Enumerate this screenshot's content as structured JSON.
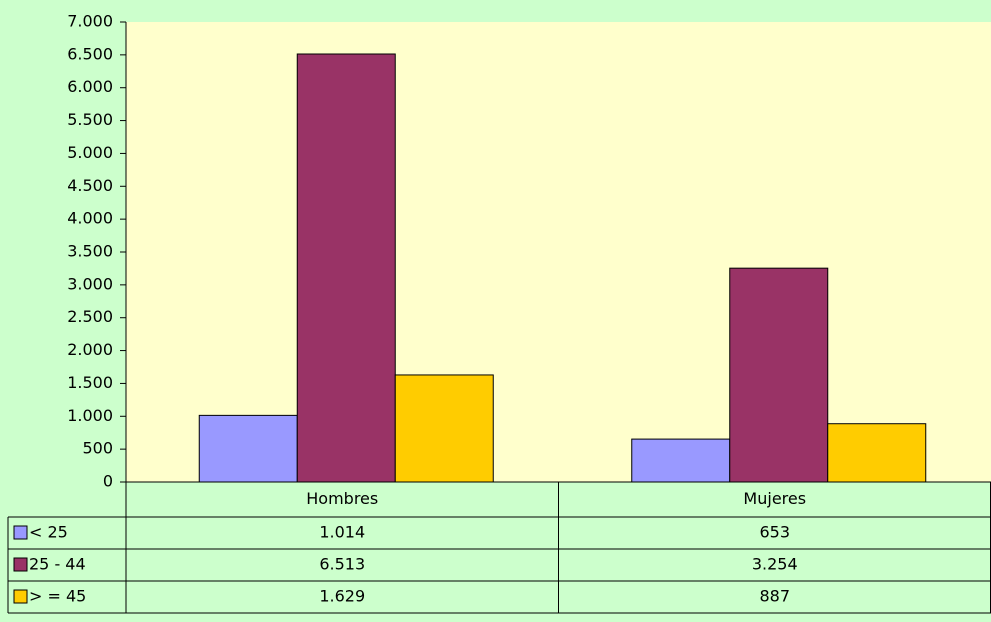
{
  "chart_data": {
    "type": "bar",
    "categories": [
      "Hombres",
      "Mujeres"
    ],
    "series": [
      {
        "name": "< 25",
        "color": "#9999ff",
        "values": [
          1014,
          653
        ],
        "value_labels": [
          "1.014",
          "653"
        ]
      },
      {
        "name": "25 - 44",
        "color": "#993366",
        "values": [
          6513,
          3254
        ],
        "value_labels": [
          "6.513",
          "3.254"
        ]
      },
      {
        "name": "> = 45",
        "color": "#ffcc00",
        "values": [
          1629,
          887
        ],
        "value_labels": [
          "1.629",
          "887"
        ]
      }
    ],
    "ylim": [
      0,
      7000
    ],
    "yticks": [
      0,
      500,
      {
        "value": 1000,
        "label": "1.000"
      },
      {
        "value": 1500,
        "label": "1.500"
      },
      {
        "value": 2000,
        "label": "2.000"
      },
      {
        "value": 2500,
        "label": "2.500"
      },
      {
        "value": 3000,
        "label": "3.000"
      },
      {
        "value": 3500,
        "label": "3.500"
      },
      {
        "value": 4000,
        "label": "4.000"
      },
      {
        "value": 4500,
        "label": "4.500"
      },
      {
        "value": 5000,
        "label": "5.000"
      },
      {
        "value": 5500,
        "label": "5.500"
      },
      {
        "value": 6000,
        "label": "6.000"
      },
      {
        "value": 6500,
        "label": "6.500"
      },
      {
        "value": 7000,
        "label": "7.000"
      }
    ],
    "grid": false,
    "data_table": true
  }
}
